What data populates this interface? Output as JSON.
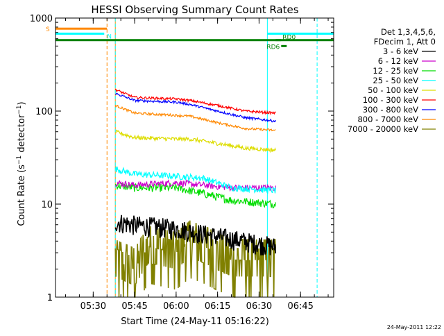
{
  "chart_data": {
    "type": "line",
    "title": "HESSI Observing Summary Count Rates",
    "xlabel": "Start Time (24-May-11 05:16:22)",
    "ylabel": "Count Rate (s⁻¹ detector⁻¹)",
    "ylabel_parts": {
      "pre": "Count Rate (s",
      "sup1": "−1",
      "mid": " detector",
      "sup2": "−1",
      "post": ")"
    },
    "y_scale": "log",
    "ylim": [
      1,
      1000
    ],
    "xlim": [
      "05:16:22",
      "06:57:00"
    ],
    "x_ticks": [
      "05:30",
      "05:45",
      "06:00",
      "06:15",
      "06:30",
      "06:45"
    ],
    "y_ticks": [
      "1",
      "10",
      "100",
      "1000"
    ],
    "grid": false,
    "legend_placement": "right",
    "legend_header": [
      "Det 1,3,4,5,6,",
      "FDecim 1, Att 0"
    ],
    "series": [
      {
        "name": "3 - 6 keV",
        "color": "#000000",
        "noise": 0.25,
        "points": [
          [
            "05:38",
            "6.5"
          ],
          [
            "05:45",
            "6"
          ],
          [
            "06:00",
            "5.5"
          ],
          [
            "06:15",
            "4.5"
          ],
          [
            "06:25",
            "4"
          ],
          [
            "06:36",
            "3.5"
          ]
        ]
      },
      {
        "name": "6 - 12 keV",
        "color": "#cc00cc",
        "noise": 0.08,
        "points": [
          [
            "05:38",
            "17"
          ],
          [
            "05:45",
            "16"
          ],
          [
            "06:00",
            "17"
          ],
          [
            "06:10",
            "16"
          ],
          [
            "06:20",
            "15"
          ],
          [
            "06:36",
            "15"
          ]
        ]
      },
      {
        "name": "12 - 25 keV",
        "color": "#00dd00",
        "noise": 0.1,
        "points": [
          [
            "05:38",
            "16"
          ],
          [
            "05:45",
            "15"
          ],
          [
            "06:00",
            "15"
          ],
          [
            "06:10",
            "13"
          ],
          [
            "06:20",
            "11"
          ],
          [
            "06:36",
            "10"
          ]
        ]
      },
      {
        "name": "25 - 50 keV",
        "color": "#00ffff",
        "noise": 0.08,
        "points": [
          [
            "05:38",
            "24"
          ],
          [
            "05:45",
            "21"
          ],
          [
            "06:00",
            "20"
          ],
          [
            "06:10",
            "19"
          ],
          [
            "06:20",
            "15"
          ],
          [
            "06:36",
            "14"
          ]
        ]
      },
      {
        "name": "50 - 100 keV",
        "color": "#dddd00",
        "noise": 0.05,
        "points": [
          [
            "05:38",
            "60"
          ],
          [
            "05:45",
            "52"
          ],
          [
            "06:00",
            "50"
          ],
          [
            "06:05",
            "50"
          ],
          [
            "06:15",
            "45"
          ],
          [
            "06:25",
            "40"
          ],
          [
            "06:36",
            "38"
          ]
        ]
      },
      {
        "name": "100 - 300 keV",
        "color": "#ff0000",
        "noise": 0.03,
        "points": [
          [
            "05:38",
            "170"
          ],
          [
            "05:45",
            "140"
          ],
          [
            "06:00",
            "135"
          ],
          [
            "06:05",
            "130"
          ],
          [
            "06:15",
            "115"
          ],
          [
            "06:25",
            "100"
          ],
          [
            "06:36",
            "95"
          ]
        ]
      },
      {
        "name": "300 - 800 keV",
        "color": "#0000ff",
        "noise": 0.03,
        "points": [
          [
            "05:38",
            "155"
          ],
          [
            "05:45",
            "130"
          ],
          [
            "06:00",
            "125"
          ],
          [
            "06:05",
            "118"
          ],
          [
            "06:15",
            "100"
          ],
          [
            "06:25",
            "85"
          ],
          [
            "06:36",
            "78"
          ]
        ]
      },
      {
        "name": "800 - 7000 keV",
        "color": "#ff8800",
        "noise": 0.03,
        "points": [
          [
            "05:38",
            "115"
          ],
          [
            "05:45",
            "95"
          ],
          [
            "06:00",
            "90"
          ],
          [
            "06:05",
            "88"
          ],
          [
            "06:15",
            "75"
          ],
          [
            "06:25",
            "65"
          ],
          [
            "06:36",
            "62"
          ]
        ]
      },
      {
        "name": "7000 - 20000 keV",
        "color": "#808000",
        "noise": 0.0,
        "points": [
          [
            "05:38",
            "2.5"
          ],
          [
            "05:45",
            "2"
          ],
          [
            "05:50",
            "3.5"
          ],
          [
            "06:00",
            "3"
          ],
          [
            "06:05",
            "4"
          ],
          [
            "06:10",
            "3.5"
          ],
          [
            "06:20",
            "2.5"
          ],
          [
            "06:30",
            "2.5"
          ],
          [
            "06:36",
            "2.5"
          ]
        ]
      }
    ],
    "flags": [
      {
        "label": "S",
        "color": "#ff8800",
        "start": "05:16:22",
        "end": "05:35",
        "y": 770,
        "vline": true
      },
      {
        "label": "N",
        "color": "#00ffff",
        "start": "05:16:22",
        "end": "05:34",
        "y": 680,
        "vline": true
      },
      {
        "label": "",
        "color": "#00ffff",
        "start": "06:33",
        "end": "06:57",
        "y": 680,
        "vline": true
      },
      {
        "label": "",
        "color": "#008000",
        "start": "05:16:22",
        "end": "06:57",
        "y": 580,
        "vline": false
      },
      {
        "label": "RD0",
        "color": "#008000",
        "start": "06:36",
        "end": "06:38",
        "y": 580,
        "vline": false
      },
      {
        "label": "RD6",
        "color": "#008000",
        "start": "06:38",
        "end": "06:40",
        "y": 500,
        "vline": false
      }
    ],
    "vertical_lines": [
      {
        "time": "05:16:22",
        "color": "#00dd00",
        "style": "solid"
      },
      {
        "time": "05:38",
        "color": "#ff8800",
        "style": "solid"
      },
      {
        "time": "05:35",
        "color": "#ff8800",
        "style": "dashed"
      },
      {
        "time": "05:38",
        "color": "#00ffff",
        "style": "dashed"
      },
      {
        "time": "06:33",
        "color": "#00ffff",
        "style": "solid"
      },
      {
        "time": "06:51",
        "color": "#00ffff",
        "style": "dashed"
      }
    ],
    "footer_date": "24-May-2011 12:22"
  }
}
